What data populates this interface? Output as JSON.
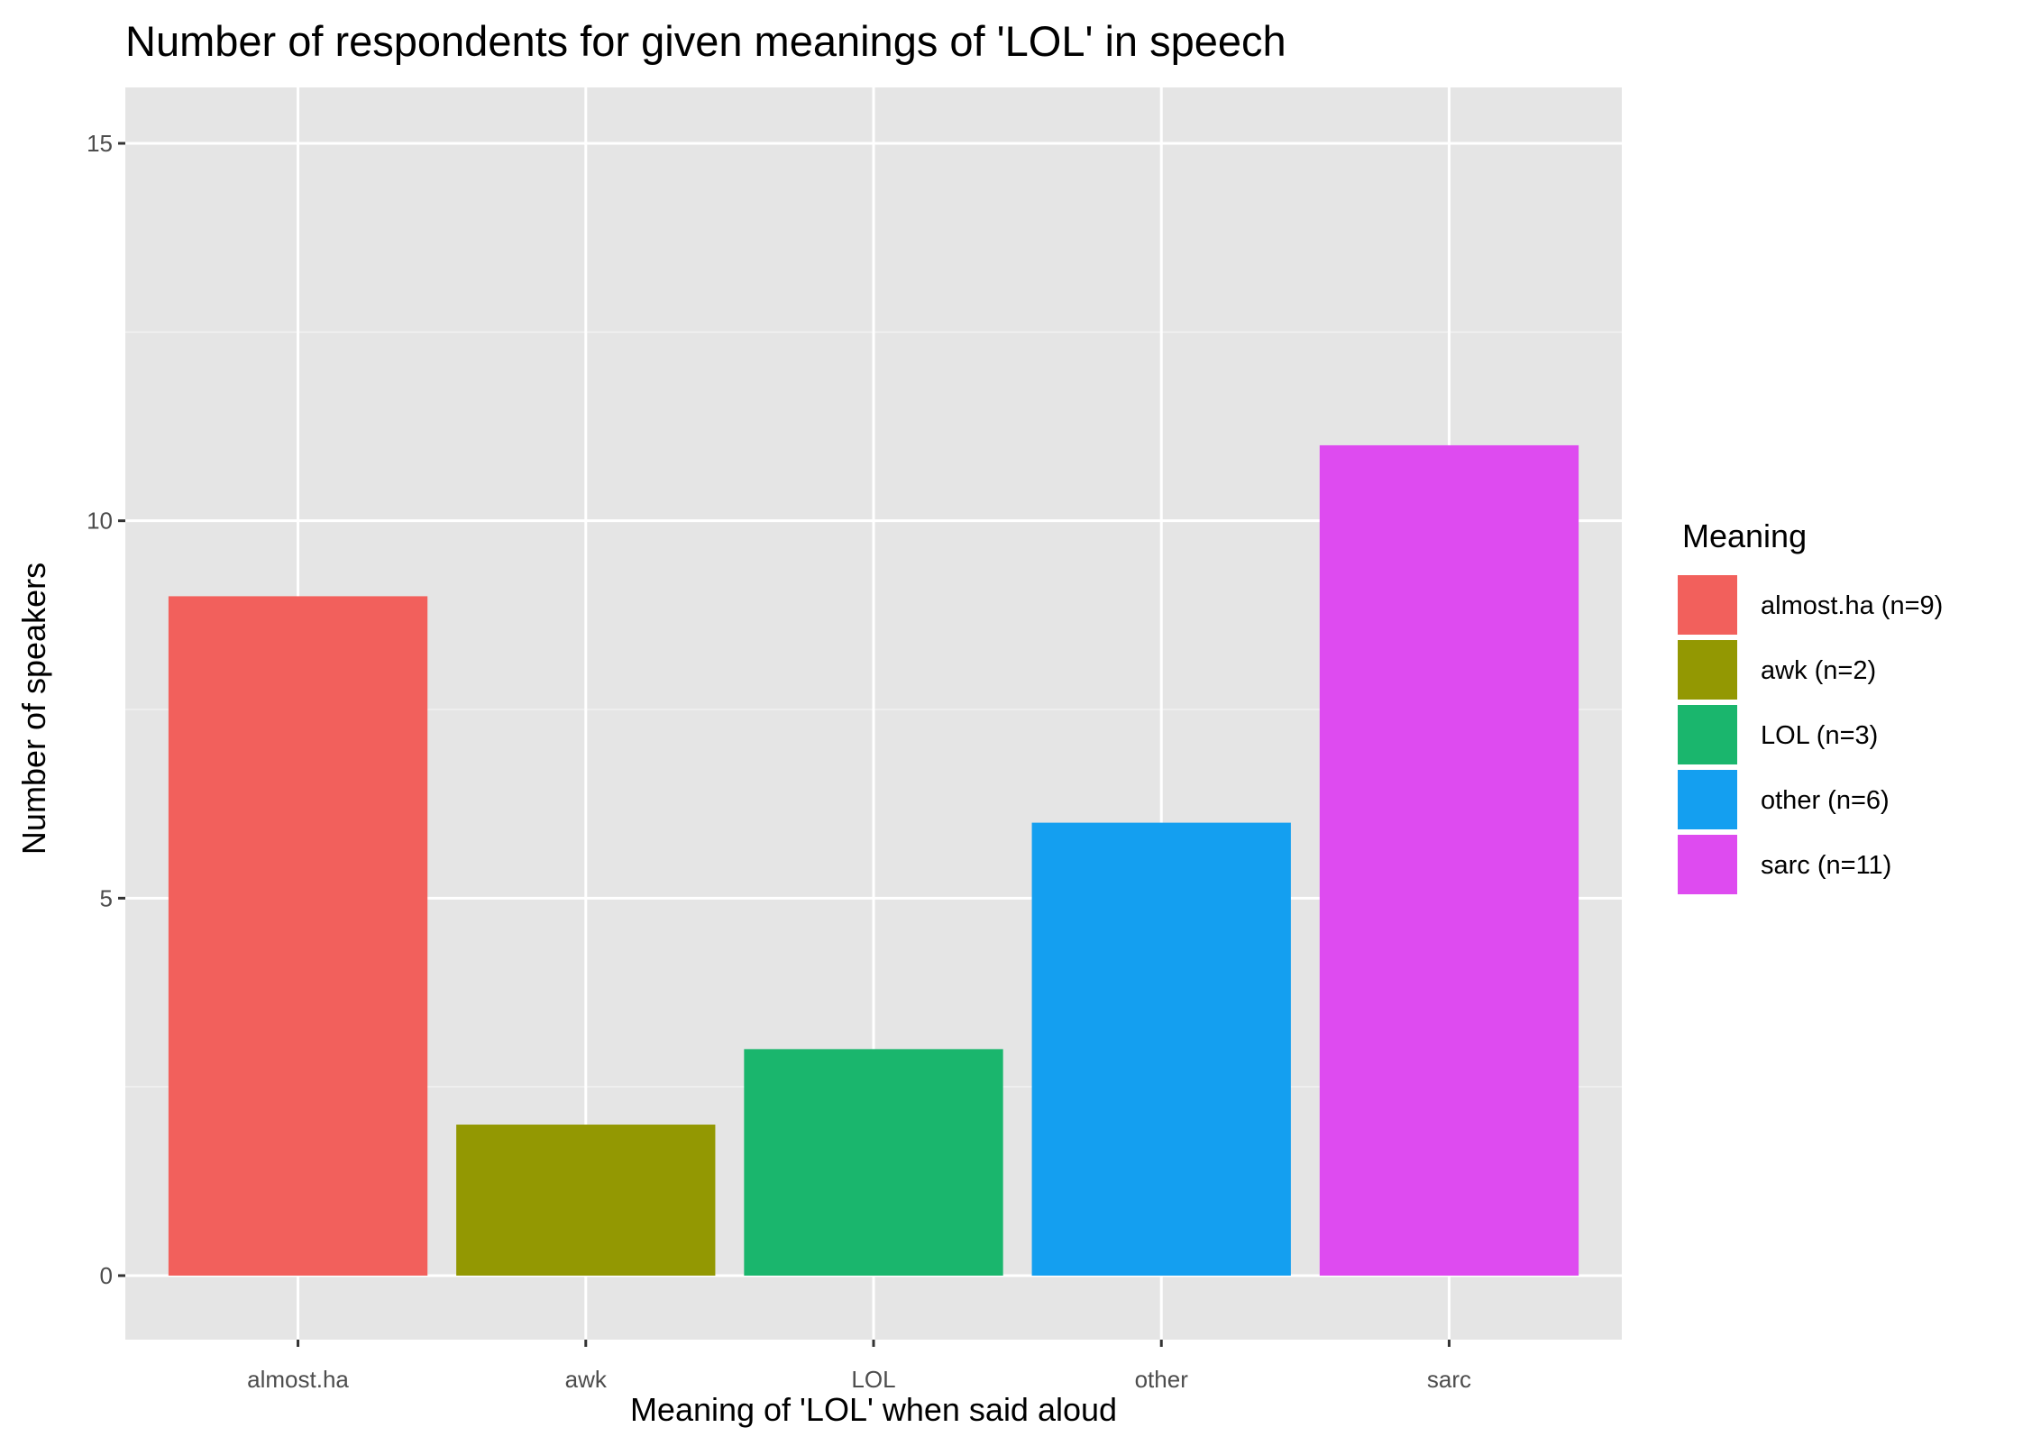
{
  "chart_data": {
    "type": "bar",
    "title": "Number of respondents for given meanings of 'LOL' in speech",
    "xlabel": "Meaning of 'LOL' when said aloud",
    "ylabel": "Number of speakers",
    "categories": [
      "almost.ha",
      "awk",
      "LOL",
      "other",
      "sarc"
    ],
    "values": [
      9,
      2,
      3,
      6,
      11
    ],
    "colors": [
      "#F8766D",
      "#A3A500",
      "#00BF7D",
      "#00B0F6",
      "#E76BF3"
    ],
    "bar_colors_rendered": [
      "#f2605c",
      "#939802",
      "#1ab66d",
      "#149ff0",
      "#de4bf0"
    ],
    "ylim": [
      -0.75,
      15.75
    ],
    "yticks": [
      0,
      5,
      10,
      15
    ],
    "ytick_labels": [
      "0",
      "5",
      "10",
      "15"
    ],
    "grid": true,
    "panel_background": "#e5e5e5",
    "legend": {
      "title": "Meaning",
      "placement": "right",
      "entries": [
        "almost.ha (n=9)",
        "awk (n=2)",
        "LOL (n=3)",
        "other (n=6)",
        "sarc (n=11)"
      ]
    }
  }
}
